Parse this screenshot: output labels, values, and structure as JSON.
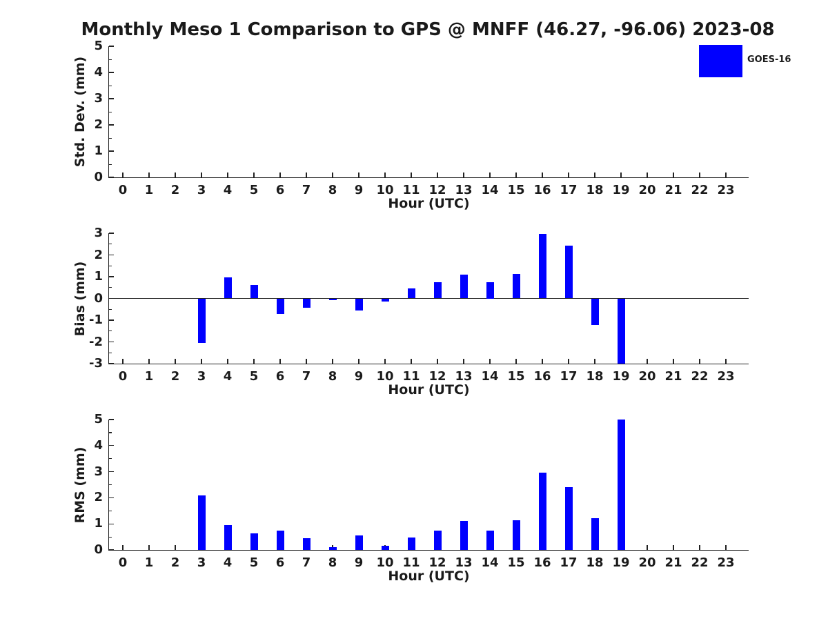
{
  "title": "Monthly Meso 1 Comparison to GPS @ MNFF (46.27, -96.06) 2023-08",
  "legend": {
    "label": "GOES-16",
    "color": "#0000ff"
  },
  "bar_color": "#0000ff",
  "chart_data": [
    {
      "type": "bar",
      "panel": "std-dev",
      "ylabel": "Std. Dev. (mm)",
      "xlabel": "Hour (UTC)",
      "series_name": "GOES-16",
      "categories": [
        "0",
        "1",
        "2",
        "3",
        "4",
        "5",
        "6",
        "7",
        "8",
        "9",
        "10",
        "11",
        "12",
        "13",
        "14",
        "15",
        "16",
        "17",
        "18",
        "19",
        "20",
        "21",
        "22",
        "23"
      ],
      "values": [
        0,
        0,
        0,
        0,
        0,
        0,
        0,
        0,
        0,
        0,
        0,
        0,
        0,
        0,
        0,
        0,
        0,
        0,
        0,
        0,
        0,
        0,
        0,
        0
      ],
      "ylim": [
        0,
        5
      ],
      "yticks": [
        0,
        1,
        2,
        3,
        4,
        5
      ],
      "grid": false,
      "legend_position": "top-right"
    },
    {
      "type": "bar",
      "panel": "bias",
      "ylabel": "Bias (mm)",
      "xlabel": "Hour (UTC)",
      "series_name": "GOES-16",
      "categories": [
        "0",
        "1",
        "2",
        "3",
        "4",
        "5",
        "6",
        "7",
        "8",
        "9",
        "10",
        "11",
        "12",
        "13",
        "14",
        "15",
        "16",
        "17",
        "18",
        "19",
        "20",
        "21",
        "22",
        "23"
      ],
      "values": [
        0,
        0,
        0,
        -2.05,
        0.97,
        0.63,
        -0.73,
        -0.44,
        -0.08,
        -0.55,
        -0.14,
        0.47,
        0.76,
        1.1,
        0.75,
        1.13,
        2.97,
        2.42,
        -1.22,
        -3.0,
        0,
        0,
        0,
        0
      ],
      "ylim": [
        -3,
        3
      ],
      "yticks": [
        -3,
        -2,
        -1,
        0,
        1,
        2,
        3
      ],
      "grid": false,
      "zero_line": true
    },
    {
      "type": "bar",
      "panel": "rms",
      "ylabel": "RMS (mm)",
      "xlabel": "Hour (UTC)",
      "series_name": "GOES-16",
      "categories": [
        "0",
        "1",
        "2",
        "3",
        "4",
        "5",
        "6",
        "7",
        "8",
        "9",
        "10",
        "11",
        "12",
        "13",
        "14",
        "15",
        "16",
        "17",
        "18",
        "19",
        "20",
        "21",
        "22",
        "23"
      ],
      "values": [
        0,
        0,
        0,
        2.08,
        0.95,
        0.64,
        0.74,
        0.44,
        0.1,
        0.55,
        0.15,
        0.47,
        0.75,
        1.1,
        0.74,
        1.13,
        2.97,
        2.41,
        1.21,
        5.0,
        0,
        0,
        0,
        0
      ],
      "ylim": [
        0,
        5
      ],
      "yticks": [
        0,
        1,
        2,
        3,
        4,
        5
      ],
      "grid": false
    }
  ]
}
